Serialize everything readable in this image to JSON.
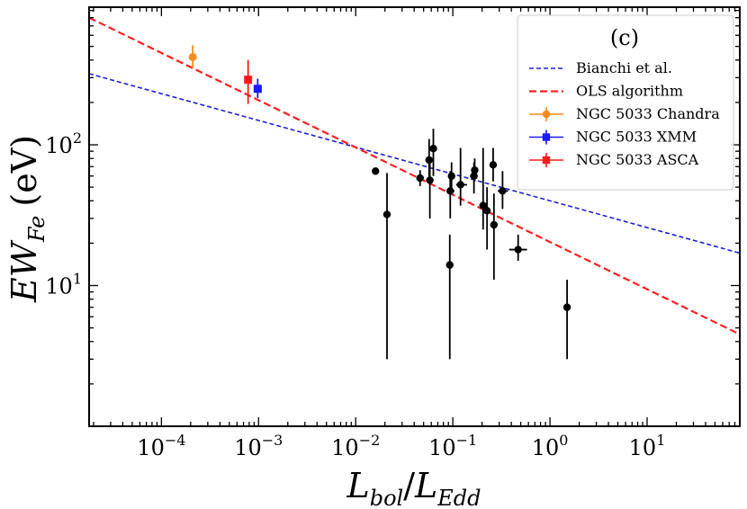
{
  "chart_data": {
    "type": "scatter",
    "panel_label": "(c)",
    "xlabel": {
      "main": "L",
      "sub1": "bol",
      "sep": "/",
      "main2": "L",
      "sub2": "Edd"
    },
    "ylabel": {
      "main": "EW",
      "sub": "Fe",
      "unit": "(eV)"
    },
    "x_scale": "log",
    "y_scale": "log",
    "xlim": [
      1.8e-05,
      90
    ],
    "ylim": [
      1.0,
      950
    ],
    "x_ticks": [
      {
        "value": 0.0001,
        "base": "10",
        "exp": "−4"
      },
      {
        "value": 0.001,
        "base": "10",
        "exp": "−3"
      },
      {
        "value": 0.01,
        "base": "10",
        "exp": "−2"
      },
      {
        "value": 0.1,
        "base": "10",
        "exp": "−1"
      },
      {
        "value": 1,
        "base": "10",
        "exp": "0"
      },
      {
        "value": 10,
        "base": "10",
        "exp": "1"
      }
    ],
    "y_ticks": [
      {
        "value": 10,
        "base": "10",
        "exp": "1"
      },
      {
        "value": 100,
        "base": "10",
        "exp": "2"
      }
    ],
    "legend": {
      "position": "top-right",
      "entries": [
        {
          "label": "Bianchi et al.",
          "color": "#1f1fd8",
          "kind": "dashed-line"
        },
        {
          "label": "OLS algorithm",
          "color": "#ff2020",
          "kind": "dashed-line"
        },
        {
          "label": "NGC 5033 Chandra",
          "color": "#ff8c1a",
          "kind": "circle"
        },
        {
          "label": "NGC 5033 XMM",
          "color": "#1a1aff",
          "kind": "square"
        },
        {
          "label": "NGC 5033 ASCA",
          "color": "#ff1a1a",
          "kind": "square"
        }
      ]
    },
    "lines": [
      {
        "name": "Bianchi et al.",
        "color": "#1f1fd8",
        "points": [
          [
            1.8e-05,
            320
          ],
          [
            90,
            17
          ]
        ]
      },
      {
        "name": "OLS algorithm",
        "color": "#ff2020",
        "points": [
          [
            1.8e-05,
            800
          ],
          [
            90,
            4.5
          ]
        ]
      }
    ],
    "ngc5033": [
      {
        "name": "NGC 5033 Chandra",
        "color": "#ff8c1a",
        "marker": "circle",
        "x": 0.00021,
        "y": 420,
        "y_low": 350,
        "y_high": 510
      },
      {
        "name": "NGC 5033 XMM",
        "color": "#1a1aff",
        "marker": "square",
        "x": 0.00098,
        "y": 250,
        "y_low": 215,
        "y_high": 295
      },
      {
        "name": "NGC 5033 ASCA",
        "color": "#ff1a1a",
        "marker": "square",
        "x": 0.00078,
        "y": 290,
        "y_low": 195,
        "y_high": 400
      }
    ],
    "sample": [
      {
        "x": 0.016,
        "y": 65
      },
      {
        "x": 0.021,
        "y": 32,
        "y_low": 3.0,
        "y_high": 63
      },
      {
        "x": 0.046,
        "y": 58,
        "y_low": 51,
        "y_high": 66,
        "x_low": 0.042,
        "x_high": 0.05
      },
      {
        "x": 0.057,
        "y": 78,
        "y_low": 55,
        "y_high": 110
      },
      {
        "x": 0.058,
        "y": 56,
        "y_low": 30,
        "y_high": 80
      },
      {
        "x": 0.063,
        "y": 94,
        "y_low": 60,
        "y_high": 130
      },
      {
        "x": 0.093,
        "y": 14,
        "y_low": 3.0,
        "y_high": 23
      },
      {
        "x": 0.094,
        "y": 47,
        "y_low": 30,
        "y_high": 65,
        "x_low": 0.086,
        "x_high": 0.104
      },
      {
        "x": 0.097,
        "y": 60,
        "y_low": 45,
        "y_high": 75
      },
      {
        "x": 0.12,
        "y": 52,
        "y_low": 37,
        "y_high": 95,
        "x_low": 0.108,
        "x_high": 0.14
      },
      {
        "x": 0.165,
        "y": 60,
        "y_low": 45,
        "y_high": 75,
        "x_low": 0.15,
        "x_high": 0.18
      },
      {
        "x": 0.168,
        "y": 66,
        "y_low": 55,
        "y_high": 80
      },
      {
        "x": 0.205,
        "y": 37,
        "y_low": 25,
        "y_high": 95
      },
      {
        "x": 0.225,
        "y": 34,
        "y_low": 18,
        "y_high": 50
      },
      {
        "x": 0.26,
        "y": 72,
        "y_low": 55,
        "y_high": 95
      },
      {
        "x": 0.265,
        "y": 27,
        "y_low": 11,
        "y_high": 45
      },
      {
        "x": 0.325,
        "y": 47,
        "y_low": 35,
        "y_high": 65,
        "x_low": 0.29,
        "x_high": 0.37
      },
      {
        "x": 0.47,
        "y": 18,
        "y_low": 15,
        "y_high": 23,
        "x_low": 0.38,
        "x_high": 0.58
      },
      {
        "x": 1.5,
        "y": 7.0,
        "y_low": 3.0,
        "y_high": 11
      }
    ]
  }
}
